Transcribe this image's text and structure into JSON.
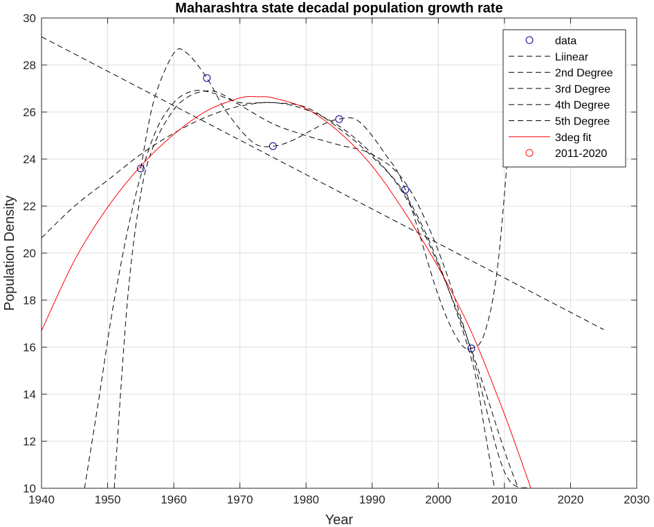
{
  "chart_data": {
    "type": "line",
    "title": "Maharashtra state decadal population growth rate",
    "xlabel": "Year",
    "ylabel": "Population Density",
    "xlim": [
      1940,
      2030
    ],
    "ylim": [
      10,
      30
    ],
    "xticks": [
      1940,
      1950,
      1960,
      1970,
      1980,
      1990,
      2000,
      2010,
      2020,
      2030
    ],
    "yticks": [
      10,
      12,
      14,
      16,
      18,
      20,
      22,
      24,
      26,
      28,
      30
    ],
    "grid": true,
    "legend_position": "top-right",
    "colors": {
      "data": "#00008b",
      "fits": "#000000",
      "fit3": "#ff0000",
      "forecast": "#ff0000",
      "grid": "#dcdcdc"
    },
    "series": [
      {
        "name": "data",
        "kind": "markers",
        "x": [
          1955,
          1965,
          1975,
          1985,
          1995,
          2005
        ],
        "y": [
          23.6,
          27.45,
          24.55,
          25.7,
          22.7,
          15.95
        ]
      },
      {
        "name": "Liinear",
        "kind": "dashed",
        "x": [
          1940,
          2025
        ],
        "y": [
          29.2,
          16.75
        ]
      },
      {
        "name": "2nd Degree",
        "kind": "dashed",
        "x": [
          1940,
          1945,
          1950,
          1955,
          1960,
          1965,
          1970,
          1975,
          1980,
          1985,
          1990,
          1995,
          2000,
          2005,
          2010,
          2012.1
        ],
        "y": [
          20.65,
          22.0,
          23.1,
          24.2,
          25.1,
          25.8,
          26.25,
          26.4,
          26.1,
          25.4,
          24.2,
          22.4,
          19.5,
          15.9,
          11.6,
          10.0
        ]
      },
      {
        "name": "3rd Degree",
        "kind": "dashed",
        "x": [
          1951,
          1953,
          1955,
          1957,
          1960,
          1962.5,
          1965,
          1967,
          1970,
          1975,
          1980,
          1985,
          1990,
          1995,
          2000,
          2005,
          2010,
          2014
        ],
        "y": [
          10.0,
          18.0,
          22.5,
          24.6,
          26.1,
          26.7,
          26.9,
          26.8,
          26.3,
          25.5,
          25.0,
          24.6,
          24.2,
          23.0,
          20.1,
          15.8,
          10.7,
          10.0
        ]
      },
      {
        "name": "4th Degree",
        "kind": "dashed",
        "x": [
          1946.5,
          1948.5,
          1951,
          1954,
          1957,
          1960,
          1963,
          1966,
          1970,
          1975,
          1980,
          1985,
          1990,
          1995,
          2000,
          2005,
          2007,
          2008.5
        ],
        "y": [
          10.0,
          13.5,
          18.0,
          22.2,
          25.0,
          26.4,
          26.9,
          26.8,
          26.4,
          26.4,
          26.2,
          25.3,
          24.1,
          22.5,
          19.6,
          15.5,
          12.5,
          10.0
        ]
      },
      {
        "name": "5th Degree",
        "kind": "dashed",
        "x": [
          1955,
          1957,
          1960,
          1962,
          1965,
          1968,
          1972,
          1975,
          1978,
          1982,
          1985,
          1988,
          1992,
          1995,
          2000,
          2003,
          2005,
          2007,
          2009,
          2011
        ],
        "y": [
          23.6,
          26.5,
          28.5,
          28.5,
          27.45,
          26.0,
          24.7,
          24.55,
          24.8,
          25.4,
          25.7,
          25.6,
          24.2,
          22.7,
          18.2,
          16.3,
          15.95,
          16.6,
          19.5,
          26.0
        ]
      },
      {
        "name": "3deg fit",
        "kind": "solid",
        "x": [
          1940,
          1945,
          1950,
          1955,
          1960,
          1965,
          1970,
          1972.5,
          1975,
          1980,
          1985,
          1990,
          1995,
          2000,
          2005,
          2010,
          2014
        ],
        "y": [
          16.7,
          19.7,
          21.95,
          23.7,
          25.05,
          26.05,
          26.6,
          26.65,
          26.6,
          26.15,
          25.15,
          23.7,
          21.7,
          19.4,
          16.65,
          13.15,
          10.0
        ]
      },
      {
        "name": "2011-2020",
        "kind": "forecast",
        "x": [],
        "y": []
      }
    ]
  }
}
